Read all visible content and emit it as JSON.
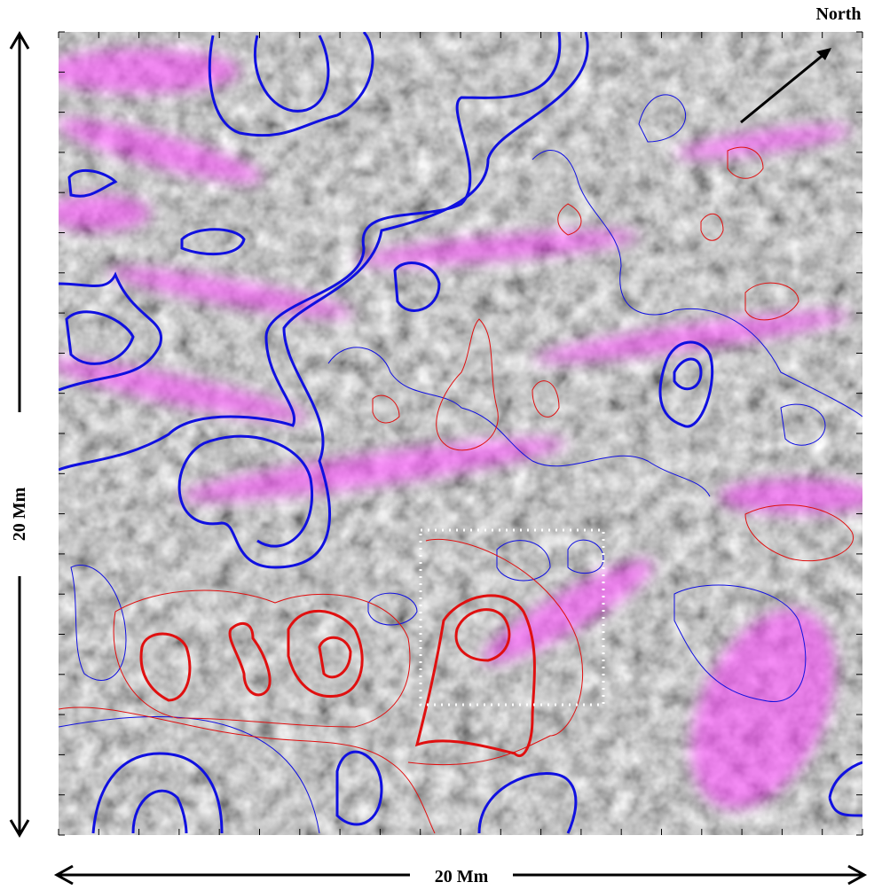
{
  "labels": {
    "north": "North",
    "scale_y": "20 Mm",
    "scale_x": "20 Mm"
  }
}
